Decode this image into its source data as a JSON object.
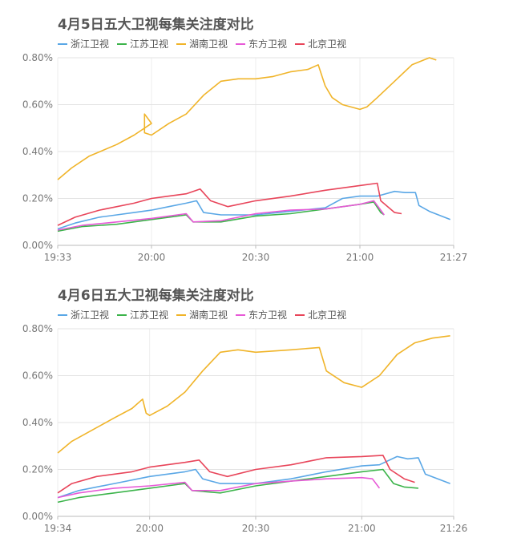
{
  "chart_data": [
    {
      "type": "line",
      "title": "4月5日五大卫视每集关注度对比",
      "xlabel": "",
      "ylabel": "",
      "x_ticks": [
        "19:33",
        "20:00",
        "20:30",
        "21:00",
        "21:27"
      ],
      "x_range": [
        "19:33",
        "21:27"
      ],
      "y_ticks": [
        "0.00%",
        "0.20%",
        "0.40%",
        "0.60%",
        "0.80%"
      ],
      "ylim": [
        0,
        0.8
      ],
      "grid": true,
      "legend_position": "top-left",
      "series": [
        {
          "name": "浙江卫视",
          "color": "#5aa7e6",
          "points": [
            [
              "19:33",
              0.07
            ],
            [
              "19:38",
              0.095
            ],
            [
              "19:45",
              0.12
            ],
            [
              "19:50",
              0.13
            ],
            [
              "19:55",
              0.14
            ],
            [
              "20:00",
              0.15
            ],
            [
              "20:05",
              0.165
            ],
            [
              "20:10",
              0.18
            ],
            [
              "20:13",
              0.19
            ],
            [
              "20:15",
              0.14
            ],
            [
              "20:20",
              0.13
            ],
            [
              "20:25",
              0.13
            ],
            [
              "20:30",
              0.13
            ],
            [
              "20:40",
              0.145
            ],
            [
              "20:50",
              0.16
            ],
            [
              "20:55",
              0.2
            ],
            [
              "21:00",
              0.21
            ],
            [
              "21:05",
              0.21
            ],
            [
              "21:10",
              0.23
            ],
            [
              "21:13",
              0.225
            ],
            [
              "21:16",
              0.225
            ],
            [
              "21:17",
              0.17
            ],
            [
              "21:20",
              0.145
            ],
            [
              "21:26",
              0.11
            ]
          ]
        },
        {
          "name": "江苏卫视",
          "color": "#3cb44b",
          "points": [
            [
              "19:33",
              0.06
            ],
            [
              "19:40",
              0.08
            ],
            [
              "19:50",
              0.09
            ],
            [
              "20:00",
              0.11
            ],
            [
              "20:05",
              0.12
            ],
            [
              "20:10",
              0.13
            ],
            [
              "20:12",
              0.1
            ],
            [
              "20:20",
              0.1
            ],
            [
              "20:30",
              0.125
            ],
            [
              "20:40",
              0.135
            ],
            [
              "20:50",
              0.155
            ],
            [
              "21:00",
              0.175
            ],
            [
              "21:04",
              0.185
            ],
            [
              "21:06",
              0.14
            ],
            [
              "21:07",
              0.13
            ]
          ]
        },
        {
          "name": "湖南卫视",
          "color": "#f0b429",
          "points": [
            [
              "19:33",
              0.28
            ],
            [
              "19:37",
              0.33
            ],
            [
              "19:42",
              0.38
            ],
            [
              "19:50",
              0.43
            ],
            [
              "19:55",
              0.47
            ],
            [
              "20:00",
              0.52
            ],
            [
              "19:58",
              0.56
            ],
            [
              "19:58",
              0.48
            ],
            [
              "20:00",
              0.47
            ],
            [
              "20:05",
              0.52
            ],
            [
              "20:10",
              0.56
            ],
            [
              "20:15",
              0.64
            ],
            [
              "20:20",
              0.7
            ],
            [
              "20:25",
              0.71
            ],
            [
              "20:30",
              0.71
            ],
            [
              "20:35",
              0.72
            ],
            [
              "20:40",
              0.74
            ],
            [
              "20:45",
              0.75
            ],
            [
              "20:48",
              0.77
            ],
            [
              "20:50",
              0.68
            ],
            [
              "20:52",
              0.63
            ],
            [
              "20:55",
              0.6
            ],
            [
              "21:00",
              0.58
            ],
            [
              "21:02",
              0.59
            ],
            [
              "21:05",
              0.63
            ],
            [
              "21:10",
              0.7
            ],
            [
              "21:15",
              0.77
            ],
            [
              "21:20",
              0.8
            ],
            [
              "21:22",
              0.79
            ]
          ]
        },
        {
          "name": "东方卫视",
          "color": "#e75ad7",
          "points": [
            [
              "19:33",
              0.065
            ],
            [
              "19:40",
              0.085
            ],
            [
              "19:50",
              0.1
            ],
            [
              "20:00",
              0.115
            ],
            [
              "20:10",
              0.135
            ],
            [
              "20:12",
              0.1
            ],
            [
              "20:20",
              0.105
            ],
            [
              "20:30",
              0.135
            ],
            [
              "20:40",
              0.15
            ],
            [
              "20:50",
              0.155
            ],
            [
              "21:00",
              0.175
            ],
            [
              "21:04",
              0.19
            ],
            [
              "21:06",
              0.15
            ],
            [
              "21:07",
              0.13
            ]
          ]
        },
        {
          "name": "北京卫视",
          "color": "#e8455a",
          "points": [
            [
              "19:33",
              0.085
            ],
            [
              "19:38",
              0.12
            ],
            [
              "19:45",
              0.15
            ],
            [
              "19:55",
              0.18
            ],
            [
              "20:00",
              0.2
            ],
            [
              "20:05",
              0.21
            ],
            [
              "20:10",
              0.22
            ],
            [
              "20:14",
              0.24
            ],
            [
              "20:17",
              0.19
            ],
            [
              "20:22",
              0.165
            ],
            [
              "20:30",
              0.19
            ],
            [
              "20:40",
              0.21
            ],
            [
              "20:50",
              0.235
            ],
            [
              "21:00",
              0.255
            ],
            [
              "21:05",
              0.265
            ],
            [
              "21:06",
              0.19
            ],
            [
              "21:10",
              0.14
            ],
            [
              "21:12",
              0.135
            ]
          ]
        }
      ]
    },
    {
      "type": "line",
      "title": "4月6日五大卫视每集关注度对比",
      "xlabel": "",
      "ylabel": "",
      "x_ticks": [
        "19:34",
        "20:00",
        "20:30",
        "21:00",
        "21:26"
      ],
      "x_range": [
        "19:34",
        "21:26"
      ],
      "y_ticks": [
        "0.00%",
        "0.20%",
        "0.40%",
        "0.60%",
        "0.80%"
      ],
      "ylim": [
        0,
        0.8
      ],
      "grid": true,
      "legend_position": "top-left",
      "series": [
        {
          "name": "浙江卫视",
          "color": "#5aa7e6",
          "points": [
            [
              "19:34",
              0.08
            ],
            [
              "19:40",
              0.11
            ],
            [
              "19:50",
              0.14
            ],
            [
              "20:00",
              0.17
            ],
            [
              "20:10",
              0.19
            ],
            [
              "20:13",
              0.2
            ],
            [
              "20:15",
              0.16
            ],
            [
              "20:20",
              0.14
            ],
            [
              "20:30",
              0.14
            ],
            [
              "20:40",
              0.16
            ],
            [
              "20:50",
              0.19
            ],
            [
              "21:00",
              0.215
            ],
            [
              "21:05",
              0.22
            ],
            [
              "21:10",
              0.255
            ],
            [
              "21:13",
              0.245
            ],
            [
              "21:16",
              0.25
            ],
            [
              "21:18",
              0.18
            ],
            [
              "21:25",
              0.14
            ]
          ]
        },
        {
          "name": "江苏卫视",
          "color": "#3cb44b",
          "points": [
            [
              "19:34",
              0.06
            ],
            [
              "19:40",
              0.08
            ],
            [
              "19:50",
              0.1
            ],
            [
              "20:00",
              0.12
            ],
            [
              "20:05",
              0.13
            ],
            [
              "20:10",
              0.14
            ],
            [
              "20:12",
              0.11
            ],
            [
              "20:20",
              0.1
            ],
            [
              "20:30",
              0.13
            ],
            [
              "20:40",
              0.15
            ],
            [
              "20:50",
              0.17
            ],
            [
              "21:00",
              0.19
            ],
            [
              "21:06",
              0.2
            ],
            [
              "21:09",
              0.14
            ],
            [
              "21:12",
              0.125
            ],
            [
              "21:16",
              0.12
            ]
          ]
        },
        {
          "name": "湖南卫视",
          "color": "#f0b429",
          "points": [
            [
              "19:34",
              0.27
            ],
            [
              "19:38",
              0.32
            ],
            [
              "19:44",
              0.37
            ],
            [
              "19:50",
              0.42
            ],
            [
              "19:55",
              0.46
            ],
            [
              "19:58",
              0.5
            ],
            [
              "19:59",
              0.44
            ],
            [
              "20:00",
              0.43
            ],
            [
              "20:05",
              0.47
            ],
            [
              "20:10",
              0.53
            ],
            [
              "20:15",
              0.62
            ],
            [
              "20:20",
              0.7
            ],
            [
              "20:25",
              0.71
            ],
            [
              "20:30",
              0.7
            ],
            [
              "20:40",
              0.71
            ],
            [
              "20:48",
              0.72
            ],
            [
              "20:50",
              0.62
            ],
            [
              "20:55",
              0.57
            ],
            [
              "21:00",
              0.55
            ],
            [
              "21:05",
              0.6
            ],
            [
              "21:10",
              0.69
            ],
            [
              "21:15",
              0.74
            ],
            [
              "21:20",
              0.76
            ],
            [
              "21:25",
              0.77
            ]
          ]
        },
        {
          "name": "东方卫视",
          "color": "#e75ad7",
          "points": [
            [
              "19:34",
              0.08
            ],
            [
              "19:40",
              0.1
            ],
            [
              "19:50",
              0.12
            ],
            [
              "20:00",
              0.13
            ],
            [
              "20:10",
              0.145
            ],
            [
              "20:12",
              0.11
            ],
            [
              "20:20",
              0.11
            ],
            [
              "20:30",
              0.14
            ],
            [
              "20:40",
              0.15
            ],
            [
              "20:50",
              0.16
            ],
            [
              "21:00",
              0.165
            ],
            [
              "21:03",
              0.16
            ],
            [
              "21:05",
              0.12
            ]
          ]
        },
        {
          "name": "北京卫视",
          "color": "#e8455a",
          "points": [
            [
              "19:34",
              0.1
            ],
            [
              "19:38",
              0.14
            ],
            [
              "19:45",
              0.17
            ],
            [
              "19:55",
              0.19
            ],
            [
              "20:00",
              0.21
            ],
            [
              "20:10",
              0.23
            ],
            [
              "20:14",
              0.24
            ],
            [
              "20:17",
              0.19
            ],
            [
              "20:22",
              0.17
            ],
            [
              "20:30",
              0.2
            ],
            [
              "20:40",
              0.22
            ],
            [
              "20:50",
              0.25
            ],
            [
              "21:00",
              0.255
            ],
            [
              "21:06",
              0.26
            ],
            [
              "21:08",
              0.2
            ],
            [
              "21:12",
              0.16
            ],
            [
              "21:15",
              0.145
            ]
          ]
        }
      ]
    }
  ]
}
